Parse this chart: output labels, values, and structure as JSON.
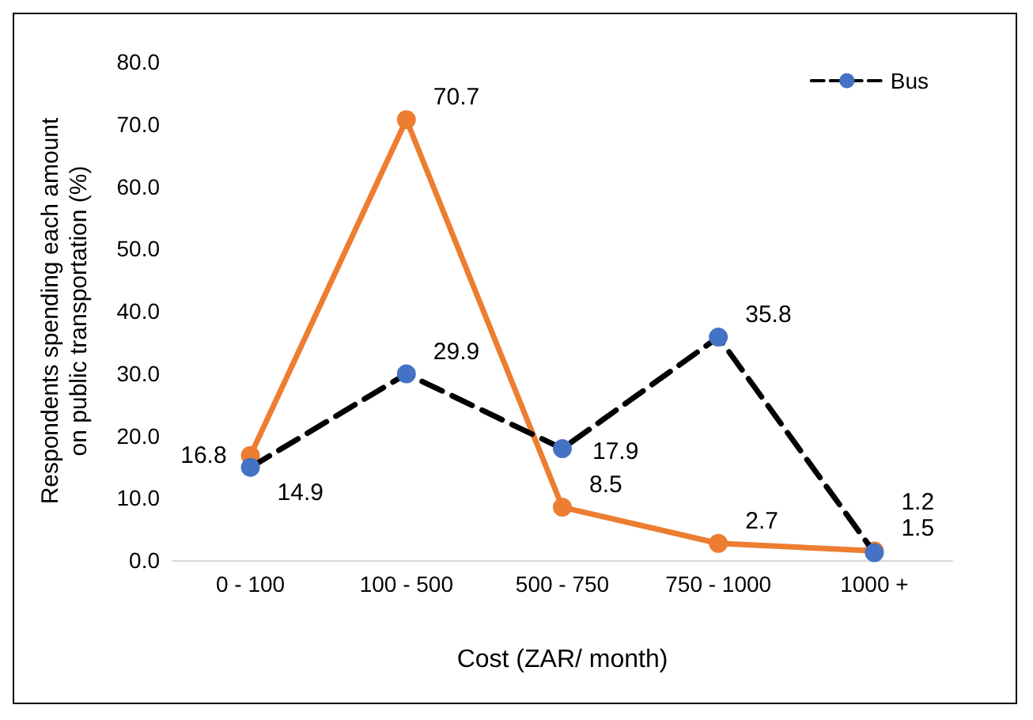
{
  "chart_data": {
    "type": "line",
    "xlabel": "Cost (ZAR/ month)",
    "ylabel": "Respondents spending each amount on public transportation (%)",
    "categories": [
      "0 - 100",
      "100 - 500",
      "500 - 750",
      "750 - 1000",
      "1000 +"
    ],
    "series": [
      {
        "name": "Bus",
        "color": "#000000",
        "colors": [
          "#4472c4",
          "#4472c4",
          "#4472c4",
          "#4472c4",
          "#4472c4"
        ],
        "line_style": "dashed",
        "values": [
          14.9,
          29.9,
          17.9,
          35.8,
          1.2
        ]
      },
      {
        "color": "#ed7d31",
        "line_style": "solid",
        "values": [
          16.8,
          70.7,
          8.5,
          2.7,
          1.5
        ]
      }
    ],
    "ylim": [
      0,
      80
    ],
    "yticks": [
      {
        "value": 0,
        "label": "0.0"
      },
      {
        "value": 10,
        "label": "10.0"
      },
      {
        "value": 20,
        "label": "20.0"
      },
      {
        "value": 30,
        "label": "30.0"
      },
      {
        "value": 40,
        "label": "40.0"
      },
      {
        "value": 50,
        "label": "50.0"
      },
      {
        "value": 60,
        "label": "60.0"
      },
      {
        "value": 70,
        "label": "70.0"
      },
      {
        "value": 80,
        "label": "80.0"
      }
    ],
    "grid": false,
    "legend": "top right",
    "marker": "circle",
    "data_labels": true
  }
}
